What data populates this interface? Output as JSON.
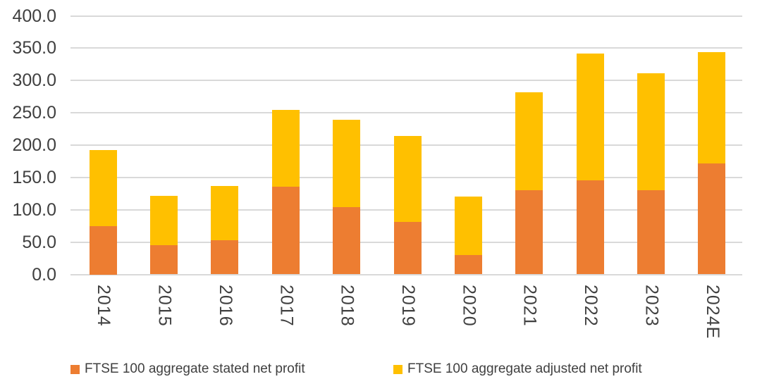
{
  "chart_data": {
    "type": "bar",
    "stacked": true,
    "title": "",
    "xlabel": "",
    "ylabel": "",
    "categories": [
      "2014",
      "2015",
      "2016",
      "2017",
      "2018",
      "2019",
      "2020",
      "2021",
      "2022",
      "2023",
      "2024E"
    ],
    "series": [
      {
        "name": "FTSE 100 aggregate stated net profit",
        "color": "#ED7D31",
        "values": [
          75,
          45,
          53,
          136,
          104,
          81,
          30,
          130,
          146,
          130,
          172
        ]
      },
      {
        "name": "FTSE 100 aggregate adjusted net profit",
        "color": "#FFC000",
        "values": [
          117,
          77,
          84,
          119,
          135,
          133,
          90,
          152,
          196,
          181,
          172
        ]
      }
    ],
    "stack_totals": [
      192,
      122,
      137,
      255,
      239,
      214,
      120,
      282,
      342,
      311,
      344
    ],
    "y_axis": {
      "min": 0,
      "max": 400,
      "step": 50,
      "tick_labels": [
        "0.0",
        "50.0",
        "100.0",
        "150.0",
        "200.0",
        "250.0",
        "300.0",
        "350.0",
        "400.0"
      ]
    },
    "grid": true,
    "legend_position": "bottom",
    "colors": {
      "stated_bar": "#ED7D31",
      "adjusted_bar": "#FFC000",
      "gridline": "#D9D9D9",
      "axis_text": "#404040",
      "background": "#FFFFFF"
    }
  }
}
